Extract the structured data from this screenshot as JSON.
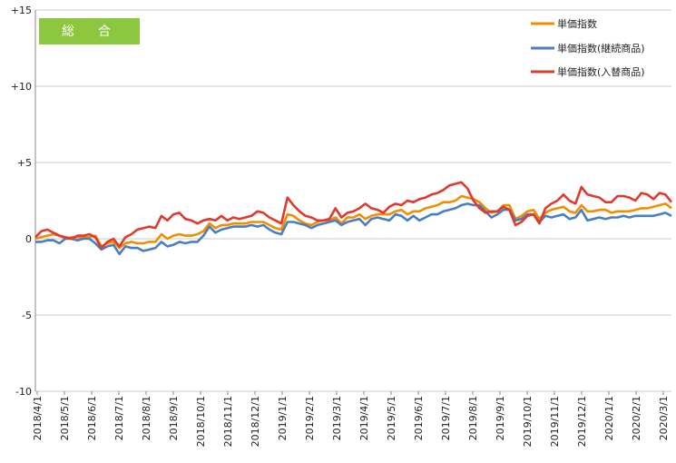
{
  "chart_data": {
    "type": "line",
    "title": "総　合",
    "badge_color": "#8dc63f",
    "ylim": [
      -10,
      15
    ],
    "y_ticks": [
      {
        "value": 15,
        "label": "+15"
      },
      {
        "value": 10,
        "label": "+10"
      },
      {
        "value": 5,
        "label": "+5"
      },
      {
        "value": 0,
        "label": "0"
      },
      {
        "value": -5,
        "label": "-5"
      },
      {
        "value": -10,
        "label": "-10"
      }
    ],
    "x_ticks": [
      "2018/4/1",
      "2018/5/1",
      "2018/6/1",
      "2018/7/1",
      "2018/8/1",
      "2018/9/1",
      "2018/10/1",
      "2018/11/1",
      "2018/12/1",
      "2019/1/1",
      "2019/2/1",
      "2019/3/1",
      "2019/4/1",
      "2019/5/1",
      "2019/6/1",
      "2019/7/1",
      "2019/8/1",
      "2019/9/1",
      "2019/10/1",
      "2019/11/1",
      "2019/12/1",
      "2020/1/1",
      "2020/2/1",
      "2020/3/1"
    ],
    "legend_position": "top-right",
    "series": [
      {
        "name": "単価指数",
        "color": "#f28c00",
        "values": [
          0.0,
          0.1,
          0.2,
          0.3,
          0.2,
          0.0,
          0.1,
          0.1,
          0.1,
          0.1,
          0.2,
          -0.5,
          -0.3,
          -0.2,
          -0.6,
          -0.3,
          -0.2,
          -0.3,
          -0.3,
          -0.2,
          -0.2,
          0.3,
          0.0,
          0.2,
          0.3,
          0.2,
          0.2,
          0.3,
          0.5,
          1.0,
          0.7,
          0.9,
          0.9,
          1.0,
          1.0,
          1.0,
          1.1,
          1.1,
          1.1,
          0.9,
          0.7,
          0.6,
          1.6,
          1.5,
          1.2,
          1.0,
          0.9,
          1.1,
          1.2,
          1.2,
          1.4,
          1.0,
          1.4,
          1.4,
          1.6,
          1.3,
          1.5,
          1.6,
          1.6,
          1.6,
          1.8,
          1.9,
          1.6,
          1.8,
          1.8,
          2.0,
          2.1,
          2.2,
          2.4,
          2.4,
          2.5,
          2.8,
          2.7,
          2.6,
          2.4,
          2.0,
          1.7,
          1.8,
          2.2,
          2.2,
          1.3,
          1.5,
          1.8,
          1.9,
          1.3,
          1.7,
          1.9,
          2.0,
          2.1,
          1.8,
          1.7,
          2.2,
          1.8,
          1.8,
          1.9,
          1.9,
          1.7,
          1.8,
          1.8,
          1.8,
          1.9,
          2.0,
          2.0,
          2.1,
          2.2,
          2.3,
          2.0
        ]
      },
      {
        "name": "単価指数(継続商品)",
        "color": "#4a7ec2",
        "values": [
          -0.2,
          -0.2,
          -0.1,
          -0.1,
          -0.3,
          0.0,
          0.0,
          -0.1,
          0.0,
          0.0,
          -0.3,
          -0.7,
          -0.5,
          -0.4,
          -1.0,
          -0.5,
          -0.6,
          -0.6,
          -0.8,
          -0.7,
          -0.6,
          -0.2,
          -0.5,
          -0.4,
          -0.2,
          -0.3,
          -0.2,
          -0.2,
          0.2,
          0.8,
          0.4,
          0.6,
          0.7,
          0.8,
          0.8,
          0.8,
          0.9,
          0.8,
          0.9,
          0.6,
          0.4,
          0.3,
          1.1,
          1.1,
          1.0,
          0.9,
          0.7,
          0.9,
          1.0,
          1.1,
          1.2,
          0.9,
          1.1,
          1.2,
          1.3,
          0.9,
          1.3,
          1.4,
          1.3,
          1.2,
          1.6,
          1.5,
          1.2,
          1.5,
          1.2,
          1.4,
          1.6,
          1.6,
          1.8,
          1.9,
          2.0,
          2.2,
          2.3,
          2.2,
          2.2,
          1.8,
          1.4,
          1.6,
          1.9,
          1.9,
          1.2,
          1.3,
          1.6,
          1.6,
          1.1,
          1.5,
          1.4,
          1.5,
          1.6,
          1.3,
          1.4,
          1.9,
          1.2,
          1.3,
          1.4,
          1.3,
          1.4,
          1.4,
          1.5,
          1.4,
          1.5,
          1.5,
          1.5,
          1.5,
          1.6,
          1.7,
          1.5
        ]
      },
      {
        "name": "単価指数(入替商品)",
        "color": "#e03a2e",
        "values": [
          0.1,
          0.5,
          0.6,
          0.4,
          0.2,
          0.1,
          0.0,
          0.2,
          0.2,
          0.3,
          0.1,
          -0.6,
          -0.2,
          0.0,
          -0.5,
          0.1,
          0.3,
          0.6,
          0.7,
          0.8,
          0.7,
          1.5,
          1.2,
          1.6,
          1.7,
          1.3,
          1.2,
          1.0,
          1.2,
          1.3,
          1.2,
          1.5,
          1.2,
          1.4,
          1.3,
          1.4,
          1.5,
          1.8,
          1.7,
          1.4,
          1.2,
          1.0,
          2.7,
          2.2,
          1.8,
          1.5,
          1.4,
          1.2,
          1.2,
          1.3,
          2.0,
          1.4,
          1.7,
          1.8,
          2.0,
          2.3,
          2.0,
          1.9,
          1.7,
          2.1,
          2.3,
          2.2,
          2.5,
          2.4,
          2.6,
          2.7,
          2.9,
          3.0,
          3.2,
          3.5,
          3.6,
          3.7,
          3.3,
          2.5,
          2.0,
          1.7,
          1.8,
          1.8,
          2.1,
          1.9,
          0.9,
          1.1,
          1.5,
          1.6,
          1.0,
          2.0,
          2.3,
          2.5,
          2.9,
          2.5,
          2.3,
          3.4,
          2.9,
          2.8,
          2.7,
          2.4,
          2.4,
          2.8,
          2.8,
          2.7,
          2.5,
          3.0,
          2.9,
          2.6,
          3.0,
          2.9,
          2.4
        ]
      }
    ]
  }
}
